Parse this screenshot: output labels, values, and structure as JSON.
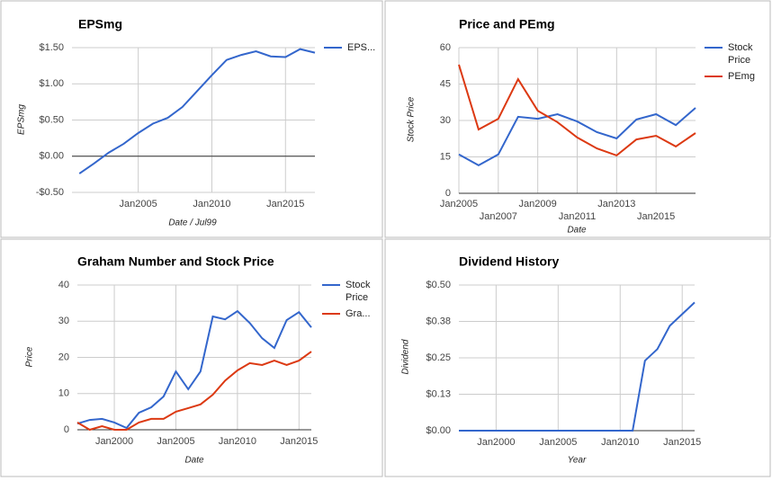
{
  "chart_data": [
    {
      "type": "line",
      "title": "EPSmg",
      "x_label": "Date / Jul99",
      "y_label": "EPSmg",
      "x": [
        2001,
        2002,
        2003,
        2004,
        2005,
        2006,
        2007,
        2008,
        2009,
        2010,
        2011,
        2012,
        2013,
        2014,
        2015,
        2016,
        2017
      ],
      "series": [
        {
          "name": "EPS...",
          "color": "#3366cc",
          "values": [
            -0.24,
            -0.1,
            0.05,
            0.17,
            0.32,
            0.45,
            0.53,
            0.68,
            0.9,
            1.12,
            1.33,
            1.4,
            1.45,
            1.38,
            1.37,
            1.48,
            1.43
          ]
        }
      ],
      "xlim": [
        2000.5,
        2017
      ],
      "xticks": [
        {
          "value": 2005,
          "label": "Jan2005"
        },
        {
          "value": 2010,
          "label": "Jan2010"
        },
        {
          "value": 2015,
          "label": "Jan2015"
        }
      ],
      "ylim": [
        -0.5,
        1.5
      ],
      "yticks": [
        {
          "value": -0.5,
          "label": "-$0.50"
        },
        {
          "value": 0,
          "label": "$0.00"
        },
        {
          "value": 0.5,
          "label": "$0.50"
        },
        {
          "value": 1,
          "label": "$1.00"
        },
        {
          "value": 1.5,
          "label": "$1.50"
        }
      ],
      "grid": true,
      "legend": "right"
    },
    {
      "type": "line",
      "title": "Price and PEmg",
      "x_label": "Date",
      "y_label": "Stock Price",
      "x": [
        2005,
        2006,
        2007,
        2008,
        2009,
        2010,
        2011,
        2012,
        2013,
        2014,
        2015,
        2016,
        2017
      ],
      "series": [
        {
          "name": "Stock Price",
          "color": "#3366cc",
          "values": [
            16,
            11.5,
            16,
            31.5,
            30.7,
            32.6,
            29.6,
            25.2,
            22.6,
            30.4,
            32.6,
            28.1,
            35.2
          ]
        },
        {
          "name": "PEmg",
          "color": "#dc3912",
          "values": [
            53,
            26.3,
            30.7,
            47,
            34,
            29.3,
            23,
            18.5,
            15.6,
            22.2,
            23.7,
            19.3,
            24.8
          ]
        }
      ],
      "xlim": [
        2005,
        2017
      ],
      "xticks": [
        {
          "value": 2005,
          "label": "Jan2005"
        },
        {
          "value": 2007,
          "label": "Jan2007"
        },
        {
          "value": 2009,
          "label": "Jan2009"
        },
        {
          "value": 2011,
          "label": "Jan2011"
        },
        {
          "value": 2013,
          "label": "Jan2013"
        },
        {
          "value": 2015,
          "label": "Jan2015"
        }
      ],
      "ylim": [
        0,
        60
      ],
      "yticks": [
        0,
        15,
        30,
        45,
        60
      ],
      "grid": true,
      "legend": "right"
    },
    {
      "type": "line",
      "title": "Graham Number and Stock Price",
      "x_label": "Date",
      "y_label": "Price",
      "x": [
        1997,
        1998,
        1999,
        2000,
        2001,
        2002,
        2003,
        2004,
        2005,
        2006,
        2007,
        2008,
        2009,
        2010,
        2011,
        2012,
        2013,
        2014,
        2015,
        2016
      ],
      "series": [
        {
          "name": "Stock Price",
          "color": "#3366cc",
          "values": [
            1.7,
            2.7,
            3,
            2,
            0.5,
            4.7,
            6.2,
            9.2,
            16.1,
            11.2,
            16.1,
            31.3,
            30.5,
            32.8,
            29.5,
            25.3,
            22.6,
            30.3,
            32.5,
            28.3
          ]
        },
        {
          "name": "Gra...",
          "color": "#dc3912",
          "values": [
            2,
            0,
            1,
            0,
            0,
            2,
            3,
            3,
            5,
            6,
            7,
            9.7,
            13.6,
            16.4,
            18.4,
            17.9,
            19.1,
            17.9,
            19.1,
            21.6
          ]
        }
      ],
      "xlim": [
        1997,
        2016
      ],
      "xticks": [
        {
          "value": 2000,
          "label": "Jan2000"
        },
        {
          "value": 2005,
          "label": "Jan2005"
        },
        {
          "value": 2010,
          "label": "Jan2010"
        },
        {
          "value": 2015,
          "label": "Jan2015"
        }
      ],
      "ylim": [
        0,
        40
      ],
      "yticks": [
        0,
        10,
        20,
        30,
        40
      ],
      "grid": true,
      "legend": "right"
    },
    {
      "type": "line",
      "title": "Dividend History",
      "x_label": "Year",
      "y_label": "Dividend",
      "x": [
        1997,
        1998,
        1999,
        2000,
        2001,
        2002,
        2003,
        2004,
        2005,
        2006,
        2007,
        2008,
        2009,
        2010,
        2011,
        2012,
        2013,
        2014,
        2015,
        2016
      ],
      "series": [
        {
          "name": "Dividend",
          "color": "#3366cc",
          "values": [
            0,
            0,
            0,
            0,
            0,
            0,
            0,
            0,
            0,
            0,
            0,
            0,
            0,
            0,
            0,
            0.24,
            0.28,
            0.36,
            0.4,
            0.44
          ]
        }
      ],
      "xlim": [
        1997,
        2016
      ],
      "xticks": [
        {
          "value": 2000,
          "label": "Jan2000"
        },
        {
          "value": 2005,
          "label": "Jan2005"
        },
        {
          "value": 2010,
          "label": "Jan2010"
        },
        {
          "value": 2015,
          "label": "Jan2015"
        }
      ],
      "ylim": [
        0,
        0.5
      ],
      "yticks": [
        {
          "value": 0,
          "label": "$0.00"
        },
        {
          "value": 0.125,
          "label": "$0.13"
        },
        {
          "value": 0.25,
          "label": "$0.25"
        },
        {
          "value": 0.375,
          "label": "$0.38"
        },
        {
          "value": 0.5,
          "label": "$0.50"
        }
      ],
      "grid": true,
      "legend": "none"
    }
  ]
}
